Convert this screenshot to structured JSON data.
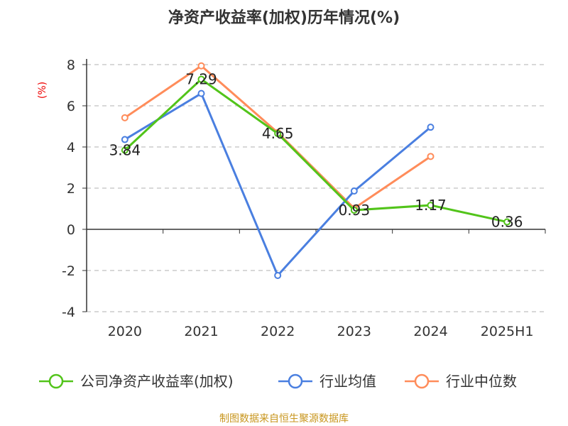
{
  "chart_data": {
    "type": "line",
    "title": "净资产收益率(加权)历年情况(%)",
    "ylabel": "(%)",
    "xlabel": "",
    "categories": [
      "2020",
      "2021",
      "2022",
      "2023",
      "2024",
      "2025H1"
    ],
    "ylim": [
      -4,
      8
    ],
    "yticks": [
      -4,
      -2,
      0,
      2,
      4,
      6,
      8
    ],
    "grid": true,
    "legend_position": "bottom",
    "series": [
      {
        "name": "公司净资产收益率(加权)",
        "color": "#52c41a",
        "values": [
          3.84,
          7.29,
          4.65,
          0.93,
          1.17,
          0.36
        ],
        "show_labels": true
      },
      {
        "name": "行业均值",
        "color": "#4a7fe0",
        "values": [
          4.36,
          6.6,
          -2.24,
          1.86,
          4.96,
          null
        ],
        "show_labels": false
      },
      {
        "name": "行业中位数",
        "color": "#ff8c5a",
        "values": [
          5.42,
          7.94,
          4.7,
          1.02,
          3.54,
          null
        ],
        "show_labels": false
      }
    ]
  },
  "source": "制图数据来自恒生聚源数据库"
}
